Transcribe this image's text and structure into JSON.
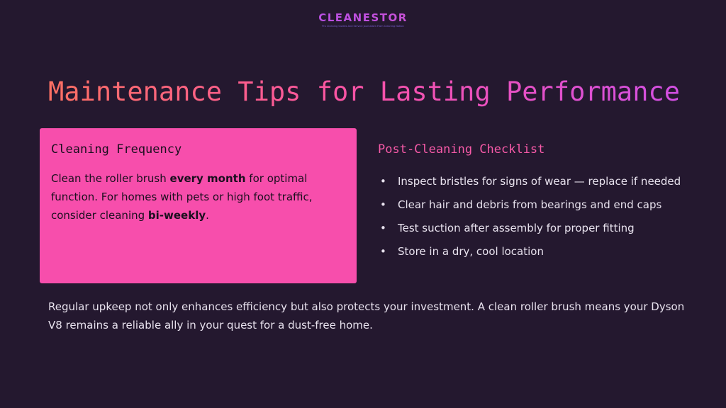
{
  "logo": {
    "wordmark": "CLEANESTOR",
    "tagline": "Pro Cleaning Guides And Service Journalism From Cleaning Nation"
  },
  "title": "Maintenance Tips for Lasting Performance",
  "card": {
    "heading": "Cleaning Frequency",
    "text_1": "Clean the roller brush ",
    "bold_1": "every month",
    "text_2": " for optimal function. For homes with pets or high foot traffic, consider cleaning ",
    "bold_2": "bi-weekly",
    "text_3": "."
  },
  "checklist": {
    "heading": "Post-Cleaning Checklist",
    "items": [
      "Inspect bristles for signs of wear — replace if needed",
      "Clear hair and debris from bearings and end caps",
      "Test suction after assembly for proper fitting",
      "Store in a dry, cool location"
    ]
  },
  "footer": "Regular upkeep not only enhances efficiency but also protects your investment. A clean roller brush means your Dyson V8 remains a reliable ally in your quest for a dust-free home.",
  "colors": {
    "background": "#24182f",
    "card": "#f74eac",
    "accent": "#f75aa8"
  }
}
